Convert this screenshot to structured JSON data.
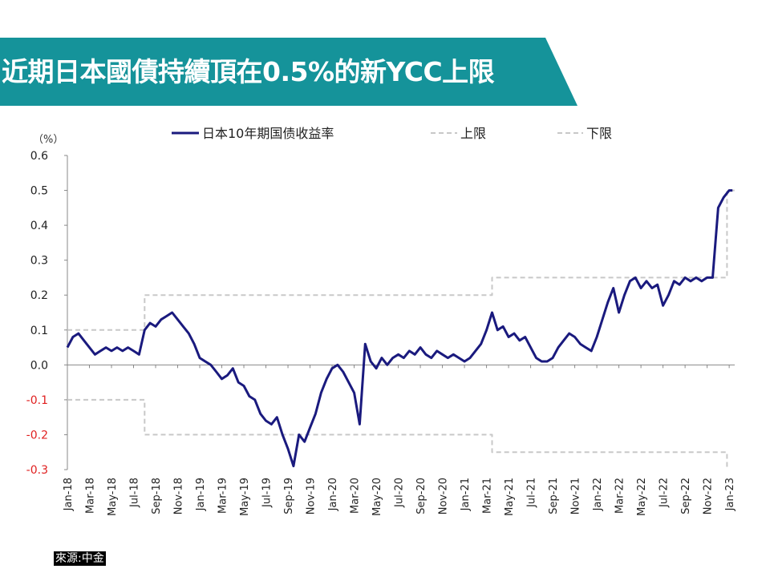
{
  "header": {
    "title": "近期日本國債持續頂在0.5%的新YCC上限"
  },
  "source": {
    "label": "來源:中金"
  },
  "chart_data": {
    "type": "line",
    "unit_label": "（%）",
    "ylim": [
      -0.3,
      0.6
    ],
    "y_ticks": [
      "0.6",
      "0.5",
      "0.4",
      "0.3",
      "0.2",
      "0.1",
      "0.0",
      "-0.1",
      "-0.2",
      "-0.3"
    ],
    "negative_tick_color": "#e02020",
    "x_ticks": [
      "Jan-18",
      "Mar-18",
      "May-18",
      "Jul-18",
      "Sep-18",
      "Nov-18",
      "Jan-19",
      "Mar-19",
      "May-19",
      "Jul-19",
      "Sep-19",
      "Nov-19",
      "Jan-20",
      "Mar-20",
      "May-20",
      "Jul-20",
      "Sep-20",
      "Nov-20",
      "Jan-21",
      "Mar-21",
      "May-21",
      "Jul-21",
      "Sep-21",
      "Nov-21",
      "Jan-22",
      "Mar-22",
      "May-22",
      "Jul-22",
      "Sep-22",
      "Nov-22",
      "Jan-23"
    ],
    "x_range_months": [
      0,
      60.5
    ],
    "legend": [
      {
        "name": "日本10年期国债收益率",
        "color": "#1a1a7e",
        "style": "solid"
      },
      {
        "name": "上限",
        "color": "#c8c8c8",
        "style": "dashed"
      },
      {
        "name": "下限",
        "color": "#c8c8c8",
        "style": "dashed"
      }
    ],
    "series": [
      {
        "name": "日本10年期国债收益率",
        "color": "#1a1a7e",
        "x": [
          0,
          0.5,
          1,
          1.5,
          2,
          2.5,
          3,
          3.5,
          4,
          4.5,
          5,
          5.5,
          6,
          6.5,
          7,
          7.5,
          8,
          8.5,
          9,
          9.5,
          10,
          10.5,
          11,
          11.5,
          12,
          12.5,
          13,
          13.5,
          14,
          14.5,
          15,
          15.5,
          16,
          16.5,
          17,
          17.5,
          18,
          18.5,
          19,
          19.5,
          20,
          20.5,
          21,
          21.5,
          22,
          22.5,
          23,
          23.5,
          24,
          24.5,
          25,
          25.5,
          26,
          26.5,
          27,
          27.5,
          28,
          28.5,
          29,
          29.5,
          30,
          30.5,
          31,
          31.5,
          32,
          32.5,
          33,
          33.5,
          34,
          34.5,
          35,
          35.5,
          36,
          36.5,
          37,
          37.5,
          38,
          38.5,
          39,
          39.5,
          40,
          40.5,
          41,
          41.5,
          42,
          42.5,
          43,
          43.5,
          44,
          44.5,
          45,
          45.5,
          46,
          46.5,
          47,
          47.5,
          48,
          48.5,
          49,
          49.5,
          50,
          50.5,
          51,
          51.5,
          52,
          52.5,
          53,
          53.5,
          54,
          54.5,
          55,
          55.5,
          56,
          56.5,
          57,
          57.5,
          58,
          58.5,
          59,
          59.5,
          60,
          60.3
        ],
        "y": [
          0.05,
          0.08,
          0.09,
          0.07,
          0.05,
          0.03,
          0.04,
          0.05,
          0.04,
          0.05,
          0.04,
          0.05,
          0.04,
          0.03,
          0.1,
          0.12,
          0.11,
          0.13,
          0.14,
          0.15,
          0.13,
          0.11,
          0.09,
          0.06,
          0.02,
          0.01,
          0.0,
          -0.02,
          -0.04,
          -0.03,
          -0.01,
          -0.05,
          -0.06,
          -0.09,
          -0.1,
          -0.14,
          -0.16,
          -0.17,
          -0.15,
          -0.2,
          -0.24,
          -0.29,
          -0.2,
          -0.22,
          -0.18,
          -0.14,
          -0.08,
          -0.04,
          -0.01,
          0.0,
          -0.02,
          -0.05,
          -0.08,
          -0.17,
          0.06,
          0.01,
          -0.01,
          0.02,
          0.0,
          0.02,
          0.03,
          0.02,
          0.04,
          0.03,
          0.05,
          0.03,
          0.02,
          0.04,
          0.03,
          0.02,
          0.03,
          0.02,
          0.01,
          0.02,
          0.04,
          0.06,
          0.1,
          0.15,
          0.1,
          0.11,
          0.08,
          0.09,
          0.07,
          0.08,
          0.05,
          0.02,
          0.01,
          0.01,
          0.02,
          0.05,
          0.07,
          0.09,
          0.08,
          0.06,
          0.05,
          0.04,
          0.08,
          0.13,
          0.18,
          0.22,
          0.15,
          0.2,
          0.24,
          0.25,
          0.22,
          0.24,
          0.22,
          0.23,
          0.17,
          0.2,
          0.24,
          0.23,
          0.25,
          0.24,
          0.25,
          0.24,
          0.25,
          0.25,
          0.45,
          0.48,
          0.5,
          0.5
        ]
      },
      {
        "name": "上限",
        "color": "#c8c8c8",
        "x": [
          0,
          7,
          7,
          38.5,
          38.5,
          59.8,
          59.8,
          60.5
        ],
        "y": [
          0.1,
          0.1,
          0.2,
          0.2,
          0.25,
          0.25,
          0.5,
          0.5
        ]
      },
      {
        "name": "下限",
        "color": "#c8c8c8",
        "x": [
          0,
          7,
          7,
          38.5,
          38.5,
          59.8,
          59.8
        ],
        "y": [
          -0.1,
          -0.1,
          -0.2,
          -0.2,
          -0.25,
          -0.25,
          -0.3
        ]
      }
    ]
  }
}
